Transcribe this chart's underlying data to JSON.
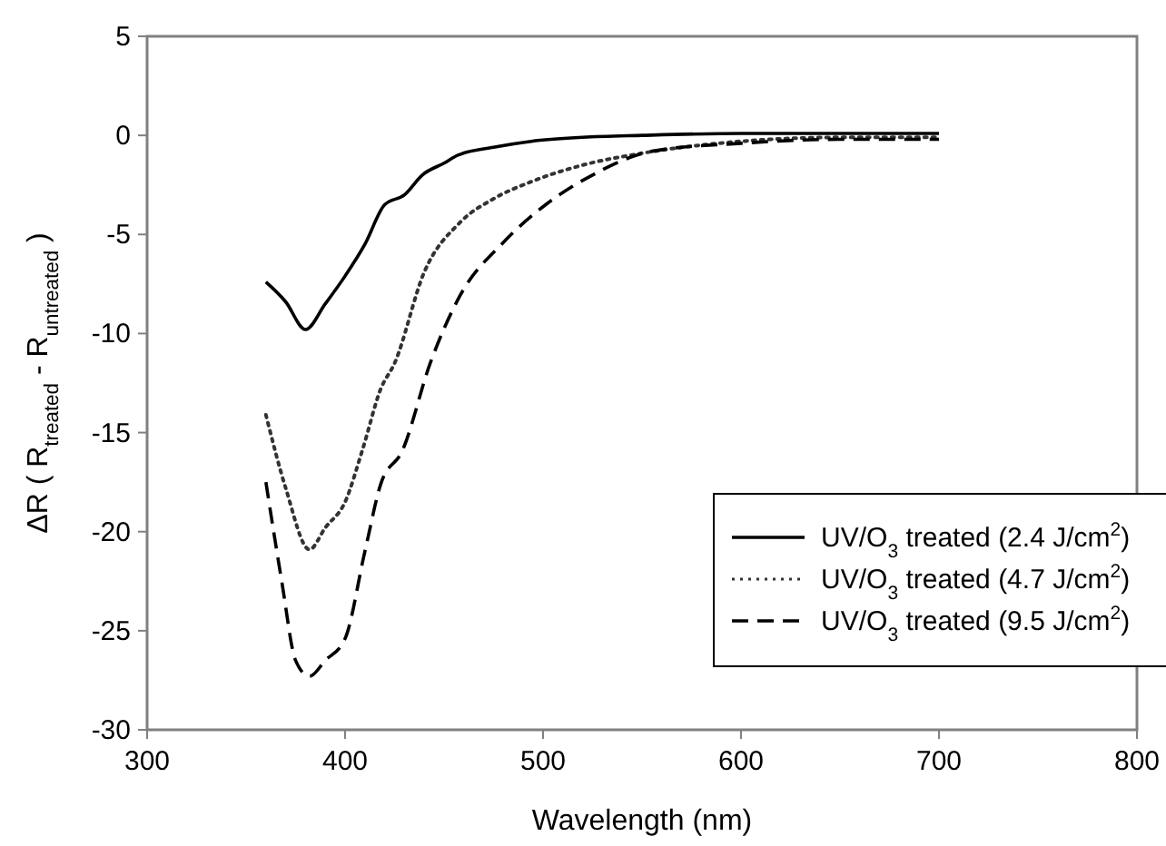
{
  "chart_data": {
    "type": "line",
    "xlabel": "Wavelength (nm)",
    "ylabel": "ΔR ( R$_{treated}$ - R$_{untreated}$ )",
    "xlim": [
      300,
      800
    ],
    "xticks": [
      300,
      400,
      500,
      600,
      700,
      800
    ],
    "ylim": [
      -30,
      5
    ],
    "yticks": [
      -30,
      -25,
      -20,
      -15,
      -10,
      -5,
      0,
      5
    ],
    "legend": "bottom right",
    "grid": false,
    "series": [
      {
        "name": "UV/O$_{3}$ treated (2.4 J/cm$^{2}$)",
        "color": "#000000",
        "line_style": "solid",
        "x": [
          360,
          370,
          380,
          390,
          400,
          410,
          420,
          430,
          439,
          450,
          457,
          475,
          494,
          520,
          550,
          600,
          650,
          700
        ],
        "values": [
          -7.4,
          -8.4,
          -9.8,
          -8.5,
          -7.1,
          -5.5,
          -3.5,
          -3.0,
          -2.0,
          -1.4,
          -1.0,
          -0.6,
          -0.3,
          -0.1,
          0.0,
          0.1,
          0.1,
          0.1
        ]
      },
      {
        "name": "UV/O$_{3}$ treated (4.7 J/cm$^{2}$)",
        "color": "#333333",
        "line_style": "dotted",
        "x": [
          360,
          370,
          382,
          390,
          400,
          409,
          418,
          425,
          440,
          458,
          475,
          495,
          520,
          550,
          600,
          650,
          700
        ],
        "values": [
          -14.1,
          -17.8,
          -20.9,
          -19.8,
          -18.5,
          -15.8,
          -12.8,
          -11.5,
          -6.9,
          -4.4,
          -3.2,
          -2.3,
          -1.5,
          -0.9,
          -0.3,
          -0.1,
          -0.1
        ]
      },
      {
        "name": "UV/O$_{3}$ treated (9.5 J/cm$^{2}$)",
        "color": "#000000",
        "line_style": "dashed",
        "x": [
          360,
          368,
          375,
          382,
          390,
          400,
          410,
          418,
          429,
          443,
          458,
          480,
          500,
          525,
          555,
          600,
          650,
          700
        ],
        "values": [
          -17.5,
          -22.5,
          -26.5,
          -27.3,
          -26.5,
          -25.4,
          -21.0,
          -17.6,
          -15.9,
          -11.5,
          -8.1,
          -5.4,
          -3.6,
          -2.0,
          -0.8,
          -0.4,
          -0.2,
          -0.2
        ]
      }
    ]
  }
}
